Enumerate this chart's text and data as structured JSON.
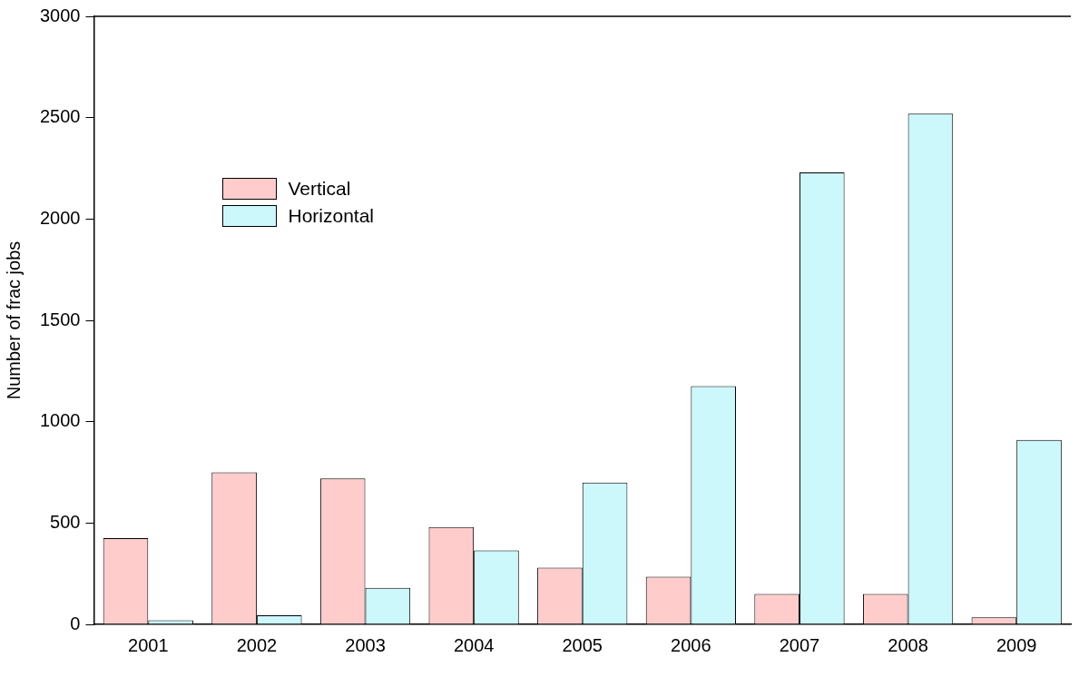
{
  "chart_data": {
    "type": "bar",
    "ylabel": "Number of frac jobs",
    "categories": [
      "2001",
      "2002",
      "2003",
      "2004",
      "2005",
      "2006",
      "2007",
      "2008",
      "2009"
    ],
    "series": [
      {
        "name": "Vertical",
        "color": "#ffcccc",
        "values": [
          425,
          750,
          720,
          480,
          280,
          235,
          150,
          150,
          35
        ]
      },
      {
        "name": "Horizontal",
        "color": "#ccf7fb",
        "values": [
          20,
          45,
          180,
          365,
          700,
          1175,
          2230,
          2520,
          910
        ]
      }
    ],
    "ylim": [
      0,
      3000
    ],
    "yticks": [
      0,
      500,
      1000,
      1500,
      2000,
      2500,
      3000
    ],
    "grid": false,
    "legend": "top left"
  }
}
